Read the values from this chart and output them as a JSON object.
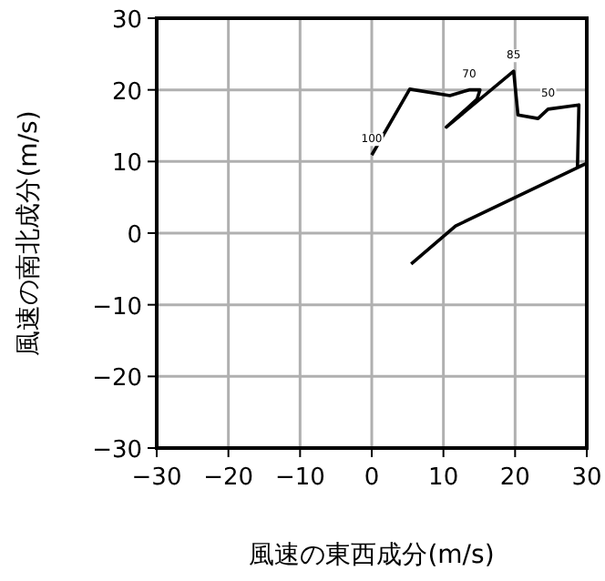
{
  "chart_data": {
    "type": "line",
    "xlabel": "風速の東西成分(m/s)",
    "ylabel": "風速の南北成分(m/s)",
    "x": [
      0,
      5.3,
      10.9,
      13.6,
      15.1,
      14.7,
      10.4,
      19.8,
      20.4,
      23.2,
      24.6,
      28.9,
      28.7,
      29.9,
      11.7,
      5.5
    ],
    "series": [
      {
        "color": "#000000",
        "values": [
          10.9,
          20.1,
          19.2,
          20.0,
          20.0,
          18.7,
          14.8,
          22.6,
          16.5,
          16.0,
          17.3,
          17.9,
          9.2,
          9.7,
          1.0,
          -4.3
        ]
      }
    ],
    "xlim": [
      -30,
      30
    ],
    "ylim": [
      -30,
      30
    ],
    "xticks": [
      -30,
      -20,
      -10,
      0,
      10,
      20,
      30
    ],
    "yticks": [
      -30,
      -20,
      -10,
      0,
      10,
      20,
      30
    ],
    "grid": true,
    "marker": "none",
    "line_style": "solid",
    "annotations": [
      {
        "text": "100",
        "x": 0,
        "y": 10.9
      },
      {
        "text": "85",
        "x": 19.8,
        "y": 22.6
      },
      {
        "text": "70",
        "x": 13.6,
        "y": 20.0
      },
      {
        "text": "50",
        "x": 24.6,
        "y": 17.3
      }
    ]
  }
}
